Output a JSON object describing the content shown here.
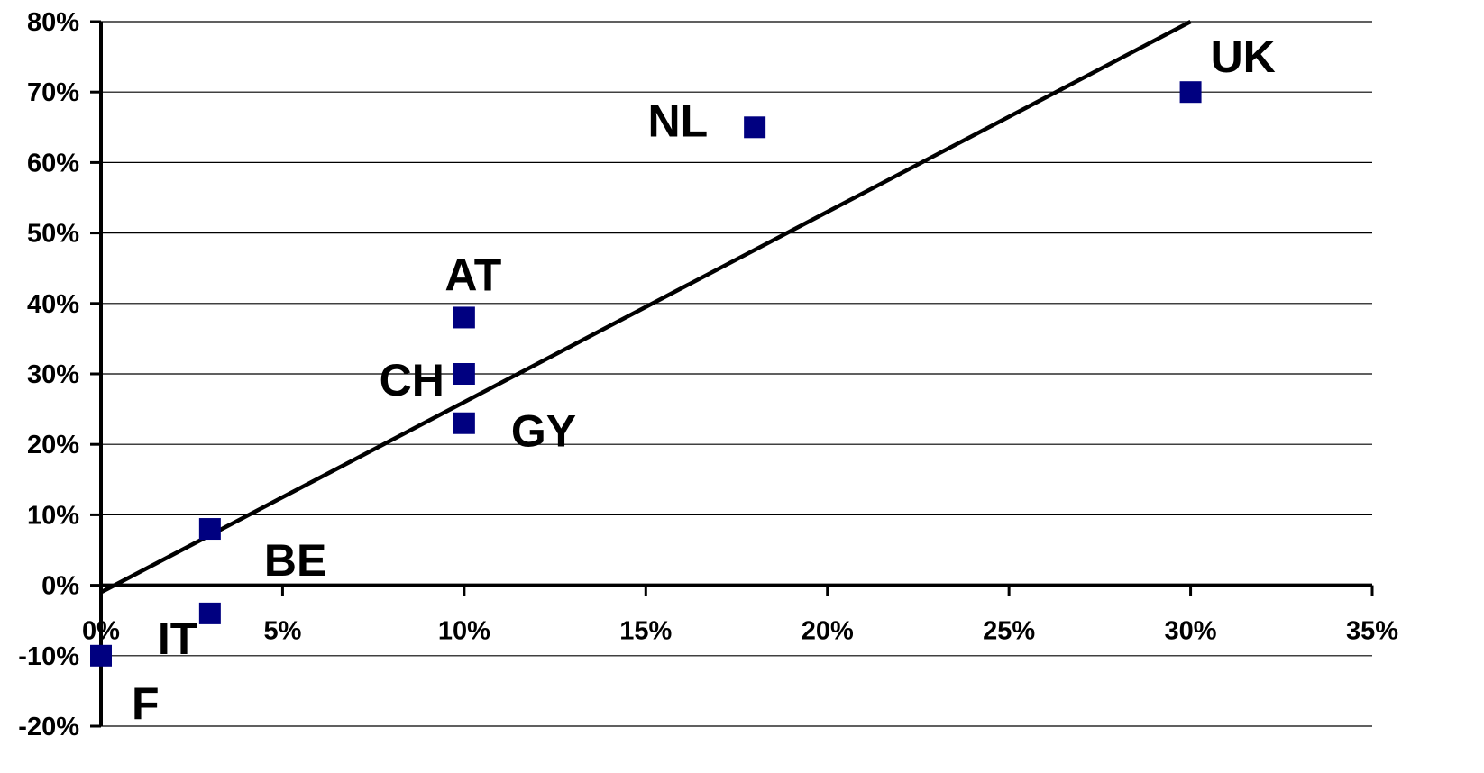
{
  "chart_data": {
    "type": "scatter",
    "title": "",
    "xlabel": "",
    "ylabel": "",
    "xlim": [
      0,
      0.35
    ],
    "ylim": [
      -0.2,
      0.8
    ],
    "x_ticks": [
      0,
      0.05,
      0.1,
      0.15,
      0.2,
      0.25,
      0.3,
      0.35
    ],
    "x_tick_labels": [
      "0%",
      "5%",
      "10%",
      "15%",
      "20%",
      "25%",
      "30%",
      "35%"
    ],
    "y_ticks": [
      -0.2,
      -0.1,
      0,
      0.1,
      0.2,
      0.3,
      0.4,
      0.5,
      0.6,
      0.7,
      0.8
    ],
    "y_tick_labels": [
      "-20%",
      "-10%",
      "0%",
      "10%",
      "20%",
      "30%",
      "40%",
      "50%",
      "60%",
      "70%",
      "80%"
    ],
    "grid": "horizontal",
    "legend": "none",
    "marker": "square",
    "colors": {
      "marker": "#000080",
      "trendline": "#000000",
      "grid": "#000000",
      "axis": "#000000",
      "text": "#000000"
    },
    "points": [
      {
        "label": "UK",
        "x": 0.3,
        "y": 0.7
      },
      {
        "label": "NL",
        "x": 0.18,
        "y": 0.65
      },
      {
        "label": "AT",
        "x": 0.1,
        "y": 0.38
      },
      {
        "label": "CH",
        "x": 0.1,
        "y": 0.3
      },
      {
        "label": "GY",
        "x": 0.1,
        "y": 0.23
      },
      {
        "label": "BE",
        "x": 0.03,
        "y": 0.08
      },
      {
        "label": "IT",
        "x": 0.03,
        "y": -0.04
      },
      {
        "label": "F",
        "x": 0.0,
        "y": -0.1
      }
    ],
    "trendline": {
      "x": [
        0.0,
        0.3
      ],
      "y": [
        -0.01,
        0.8
      ]
    }
  }
}
